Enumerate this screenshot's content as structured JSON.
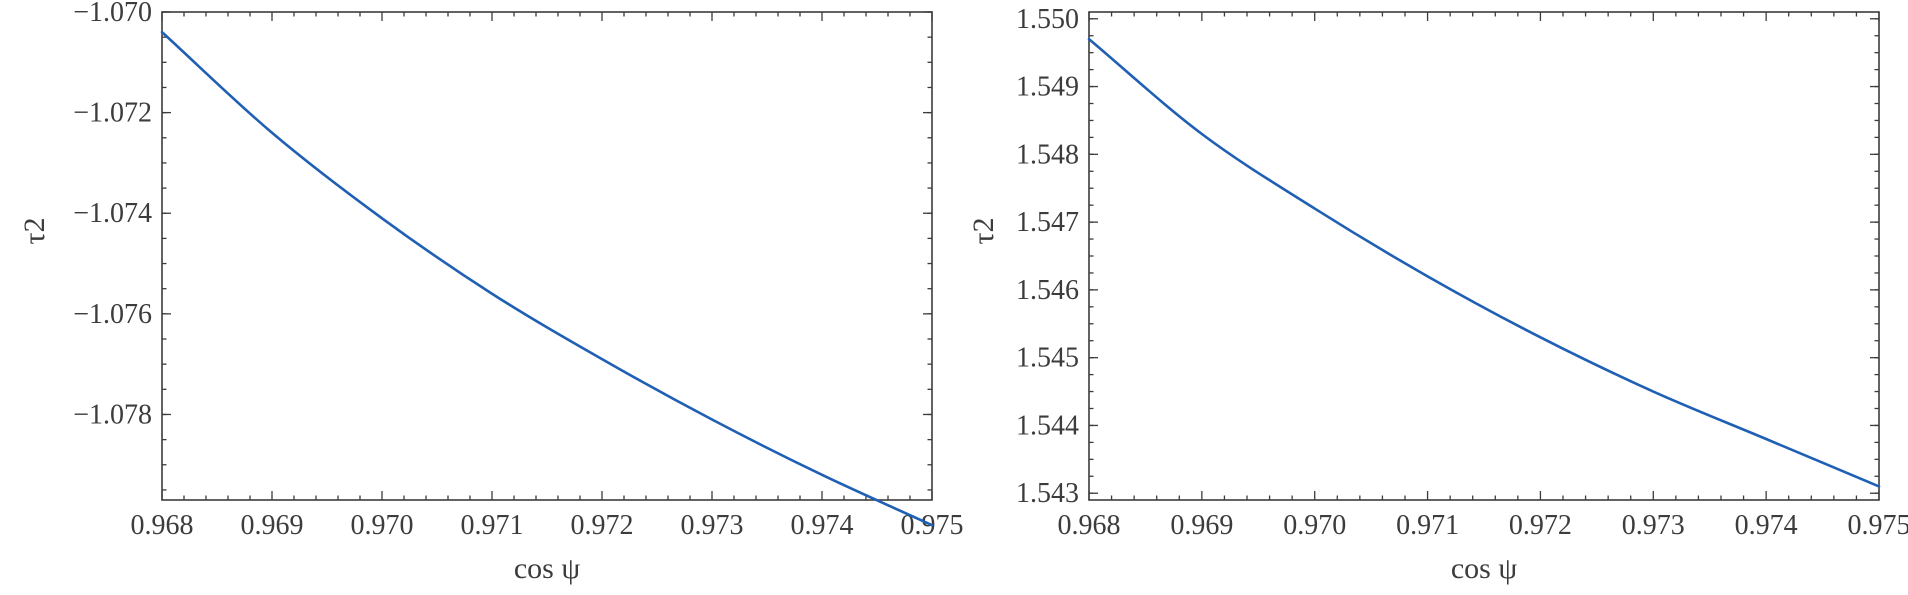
{
  "chart_data": [
    {
      "type": "line",
      "xlabel": "cos ψ",
      "ylabel": "τ2",
      "xlim": [
        0.968,
        0.975
      ],
      "ylim": [
        -1.0797,
        -1.07
      ],
      "xticks": [
        0.968,
        0.969,
        0.97,
        0.971,
        0.972,
        0.973,
        0.974,
        0.975
      ],
      "xtick_labels": [
        "0.968",
        "0.969",
        "0.970",
        "0.971",
        "0.972",
        "0.973",
        "0.974",
        "0.975"
      ],
      "yticks": [
        -1.07,
        -1.072,
        -1.074,
        -1.076,
        -1.078
      ],
      "ytick_labels": [
        "−1.070",
        "−1.072",
        "−1.074",
        "−1.076",
        "−1.078"
      ],
      "grid": false,
      "line_color": "#1f5fb4",
      "series": [
        {
          "x": [
            0.968,
            0.969,
            0.97,
            0.971,
            0.972,
            0.973,
            0.974,
            0.975
          ],
          "values": [
            -1.0704,
            -1.0724,
            -1.0741,
            -1.0756,
            -1.0769,
            -1.0781,
            -1.0792,
            -1.0802
          ]
        }
      ]
    },
    {
      "type": "line",
      "xlabel": "cos ψ",
      "ylabel": "τ2",
      "xlim": [
        0.968,
        0.975
      ],
      "ylim": [
        1.5429,
        1.5501
      ],
      "xticks": [
        0.968,
        0.969,
        0.97,
        0.971,
        0.972,
        0.973,
        0.974,
        0.975
      ],
      "xtick_labels": [
        "0.968",
        "0.969",
        "0.970",
        "0.971",
        "0.972",
        "0.973",
        "0.974",
        "0.975"
      ],
      "yticks": [
        1.543,
        1.544,
        1.545,
        1.546,
        1.547,
        1.548,
        1.549,
        1.55
      ],
      "ytick_labels": [
        "1.543",
        "1.544",
        "1.545",
        "1.546",
        "1.547",
        "1.548",
        "1.549",
        "1.550"
      ],
      "grid": false,
      "line_color": "#1f5fb4",
      "series": [
        {
          "x": [
            0.968,
            0.969,
            0.97,
            0.971,
            0.972,
            0.973,
            0.974,
            0.975
          ],
          "values": [
            1.5497,
            1.5483,
            1.5472,
            1.5462,
            1.5453,
            1.5445,
            1.5438,
            1.5431
          ]
        }
      ]
    }
  ]
}
